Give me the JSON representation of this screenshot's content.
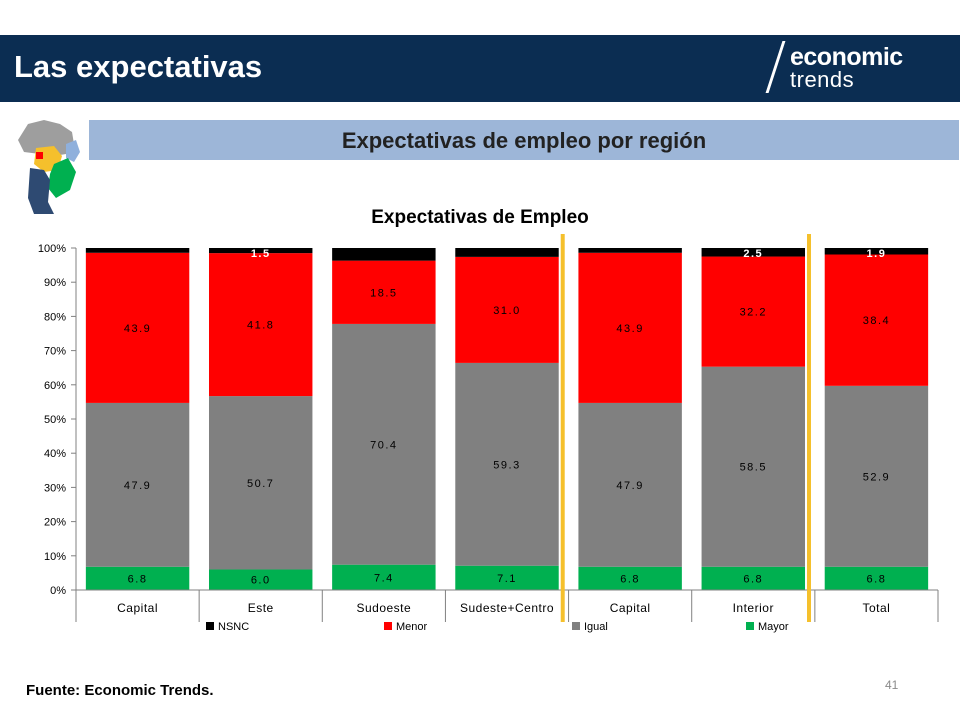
{
  "header": {
    "title": "Las expectativas",
    "logo_line1": "economic",
    "logo_line2": "trends"
  },
  "subtitle": "Expectativas de empleo por región",
  "chart_data": {
    "type": "bar",
    "stacked": true,
    "title": "Expectativas de Empleo",
    "xlabel": "",
    "ylabel": "",
    "ylim": [
      0,
      100
    ],
    "y_ticks": [
      "0%",
      "10%",
      "20%",
      "30%",
      "40%",
      "50%",
      "60%",
      "70%",
      "80%",
      "90%",
      "100%"
    ],
    "categories": [
      "Capital",
      "Este",
      "Sudoeste",
      "Sudeste+Centro",
      "Capital",
      "Interior",
      "Total"
    ],
    "series": [
      {
        "name": "Mayor",
        "color": "#00b050",
        "values": [
          6.8,
          6.0,
          7.4,
          7.1,
          6.8,
          6.8,
          6.8
        ],
        "labels": [
          "6.8",
          "6.0",
          "7.4",
          "7.1",
          "6.8",
          "6.8",
          "6.8"
        ]
      },
      {
        "name": "Igual",
        "color": "#808080",
        "values": [
          47.9,
          50.7,
          70.4,
          59.3,
          47.9,
          58.5,
          52.9
        ],
        "labels": [
          "47.9",
          "50.7",
          "70.4",
          "59.3",
          "47.9",
          "58.5",
          "52.9"
        ]
      },
      {
        "name": "Menor",
        "color": "#ff0000",
        "values": [
          43.9,
          41.8,
          18.5,
          31.0,
          43.9,
          32.2,
          38.4
        ],
        "labels": [
          "43.9",
          "41.8",
          "18.5",
          "31.0",
          "43.9",
          "32.2",
          "38.4"
        ]
      },
      {
        "name": "NSNC",
        "color": "#000000",
        "values": [
          1.4,
          1.5,
          3.7,
          2.6,
          1.4,
          2.5,
          1.9
        ],
        "labels": [
          "",
          "1.5",
          "",
          "",
          "",
          "2.5",
          "1.9"
        ]
      }
    ],
    "legend_order": [
      "NSNC",
      "Menor",
      "Igual",
      "Mayor"
    ],
    "legend_position": "bottom",
    "grid": false,
    "separator_color": "#f5c02c",
    "separators_after": [
      4,
      6
    ]
  },
  "footer": {
    "source": "Fuente: Economic Trends.",
    "page": "41"
  }
}
